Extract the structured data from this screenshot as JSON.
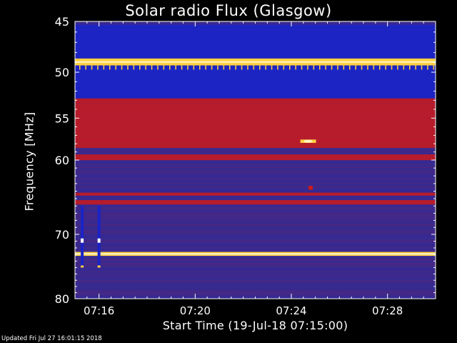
{
  "chart_data": {
    "type": "heatmap",
    "title": "Solar radio Flux (Glasgow)",
    "xlabel": "Start Time (19-Jul-18 07:15:00)",
    "ylabel": "Frequency [MHz]",
    "x_ticks": [
      "07:16",
      "07:20",
      "07:24",
      "07:28"
    ],
    "x_tick_minutes": [
      1,
      5,
      9,
      13
    ],
    "x_range_minutes": [
      0,
      15
    ],
    "y_ticks": [
      "45",
      "50",
      "55",
      "60",
      "70",
      "80"
    ],
    "y_tick_values": [
      45,
      50,
      55,
      60,
      70,
      80
    ],
    "y_range": [
      45,
      80
    ],
    "y_scale": "log",
    "colors": {
      "background": "#3a2a8c",
      "low": "#1a23c8",
      "mid": "#8a1a5a",
      "high": "#cc1a1a",
      "peak": "#ffd040"
    },
    "bands": [
      {
        "from": 45.3,
        "to": 48.6,
        "level": "low"
      },
      {
        "from": 48.6,
        "to": 49.3,
        "level": "peak"
      },
      {
        "from": 49.3,
        "to": 52.8,
        "level": "low"
      },
      {
        "from": 52.8,
        "to": 53.3,
        "level": "high"
      },
      {
        "from": 53.3,
        "to": 58.5,
        "level": "high"
      },
      {
        "from": 59.3,
        "to": 60.0,
        "level": "high"
      },
      {
        "from": 64.2,
        "to": 64.6,
        "level": "high"
      },
      {
        "from": 65.2,
        "to": 65.8,
        "level": "high"
      },
      {
        "from": 72.6,
        "to": 73.2,
        "level": "peak"
      }
    ],
    "bursts": [
      {
        "minute": 0.3,
        "freq_from": 66,
        "freq_to": 75,
        "level": "low"
      },
      {
        "minute": 1.0,
        "freq_from": 66,
        "freq_to": 75,
        "level": "low"
      },
      {
        "minute": 9.7,
        "freq_from": 57.5,
        "freq_to": 57.9,
        "level": "peak"
      },
      {
        "minute": 9.8,
        "freq_from": 63.3,
        "freq_to": 63.8,
        "level": "high"
      }
    ]
  },
  "footer": "Updated Fri Jul 27 16:01:15 2018"
}
